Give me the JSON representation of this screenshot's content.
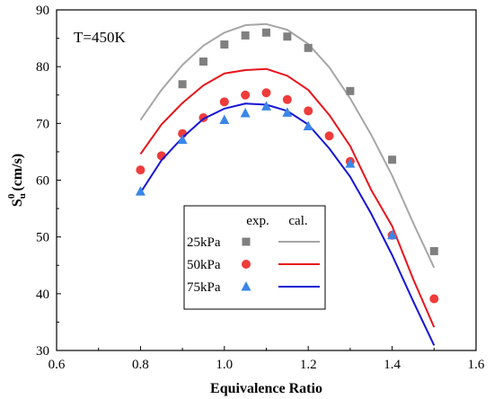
{
  "chart_data": {
    "type": "scatter",
    "annotation": "T=450K",
    "xlabel": "Equivalence Ratio",
    "ylabel_main": "S",
    "ylabel_sub": "u",
    "ylabel_sup": "0",
    "ylabel_unit": "(cm/s)",
    "xlim": [
      0.6,
      1.6
    ],
    "ylim": [
      30,
      90
    ],
    "xticks": [
      0.6,
      0.8,
      1.0,
      1.2,
      1.4,
      1.6
    ],
    "xtick_labels": [
      "0.6",
      "0.8",
      "1.0",
      "1.2",
      "1.4",
      "1.6"
    ],
    "yticks": [
      30,
      40,
      50,
      60,
      70,
      80,
      90
    ],
    "ytick_labels": [
      "30",
      "40",
      "50",
      "60",
      "70",
      "80",
      "90"
    ],
    "legend": {
      "placement": "bottom-center",
      "header_exp": "exp.",
      "header_cal": "cal."
    },
    "series": [
      {
        "name": "25kPa",
        "color": "#808080",
        "line_color": "#a6a6a6",
        "marker": "square",
        "exp": {
          "x": [
            0.9,
            0.95,
            1.0,
            1.05,
            1.1,
            1.15,
            1.2,
            1.3,
            1.4,
            1.5
          ],
          "y": [
            76.9,
            80.9,
            83.9,
            85.5,
            86.0,
            85.3,
            83.3,
            75.7,
            63.6,
            47.5
          ]
        },
        "cal": {
          "x": [
            0.8,
            0.85,
            0.9,
            0.95,
            1.0,
            1.05,
            1.1,
            1.15,
            1.2,
            1.25,
            1.3,
            1.35,
            1.4,
            1.45,
            1.5
          ],
          "y": [
            70.6,
            75.9,
            80.3,
            83.7,
            86.0,
            87.3,
            87.5,
            86.5,
            84.0,
            79.9,
            74.4,
            68.0,
            60.8,
            52.5,
            44.6
          ]
        }
      },
      {
        "name": "50kPa",
        "color": "#ef3b3b",
        "line_color": "#e8141c",
        "marker": "circle",
        "exp": {
          "x": [
            0.8,
            0.85,
            0.9,
            0.95,
            1.0,
            1.05,
            1.1,
            1.15,
            1.2,
            1.25,
            1.3,
            1.4,
            1.5
          ],
          "y": [
            61.8,
            64.3,
            68.2,
            71.0,
            73.8,
            75.0,
            75.4,
            74.2,
            72.2,
            67.8,
            63.3,
            50.3,
            39.1
          ]
        },
        "cal": {
          "x": [
            0.8,
            0.85,
            0.9,
            0.95,
            1.0,
            1.05,
            1.1,
            1.15,
            1.2,
            1.25,
            1.3,
            1.35,
            1.4,
            1.45,
            1.5
          ],
          "y": [
            64.6,
            69.8,
            73.6,
            76.7,
            78.8,
            79.4,
            79.6,
            78.4,
            75.9,
            71.5,
            66.0,
            58.3,
            51.9,
            42.6,
            34.1
          ]
        }
      },
      {
        "name": "75kPa",
        "color": "#3a86e8",
        "line_color": "#1515d6",
        "marker": "triangle",
        "exp": {
          "x": [
            0.8,
            0.9,
            1.0,
            1.05,
            1.1,
            1.15,
            1.2,
            1.3,
            1.4
          ],
          "y": [
            58.0,
            67.1,
            70.6,
            71.8,
            73.0,
            71.9,
            69.5,
            62.9,
            50.3
          ]
        },
        "cal": {
          "x": [
            0.8,
            0.85,
            0.9,
            0.95,
            1.0,
            1.05,
            1.1,
            1.15,
            1.2,
            1.25,
            1.3,
            1.35,
            1.4,
            1.45,
            1.5
          ],
          "y": [
            57.8,
            63.5,
            67.5,
            70.8,
            72.6,
            73.5,
            73.3,
            72.2,
            69.8,
            65.6,
            60.6,
            54.1,
            46.8,
            38.7,
            30.9
          ]
        }
      }
    ]
  }
}
